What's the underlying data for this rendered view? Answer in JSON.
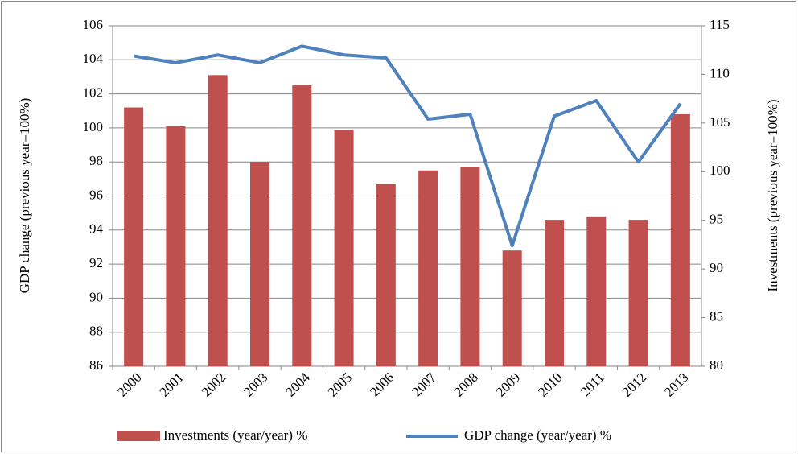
{
  "chart_data": {
    "type": "bar_line",
    "y_label": "GDP change (previous year=100%)",
    "y2_label": "Investments (previous year=100%)",
    "categories": [
      "2000",
      "2001",
      "2002",
      "2003",
      "2004",
      "2005",
      "2006",
      "2007",
      "2008",
      "2009",
      "2010",
      "2011",
      "2012",
      "2013"
    ],
    "series": [
      {
        "name": "Investments (year/year) %",
        "type": "bar",
        "color": "#c0504d",
        "values": [
          101.2,
          100.1,
          103.1,
          98.0,
          102.5,
          99.9,
          96.7,
          97.5,
          97.7,
          92.8,
          94.6,
          94.8,
          94.6,
          100.8
        ]
      },
      {
        "name": "GDP change (year/year) %",
        "type": "line",
        "color": "#4f81bd",
        "axis": "y2",
        "values": [
          111.9,
          111.2,
          112.0,
          111.2,
          112.9,
          112.0,
          111.7,
          105.4,
          105.9,
          92.4,
          105.7,
          107.3,
          101.0,
          107.0
        ]
      }
    ],
    "ylim": [
      86,
      106
    ],
    "yticks": [
      86,
      88,
      90,
      92,
      94,
      96,
      98,
      100,
      102,
      104,
      106
    ],
    "y2lim": [
      80,
      115
    ],
    "y2ticks": [
      80,
      85,
      90,
      95,
      100,
      105,
      110,
      115
    ],
    "grid": true,
    "legend": "bottom"
  }
}
